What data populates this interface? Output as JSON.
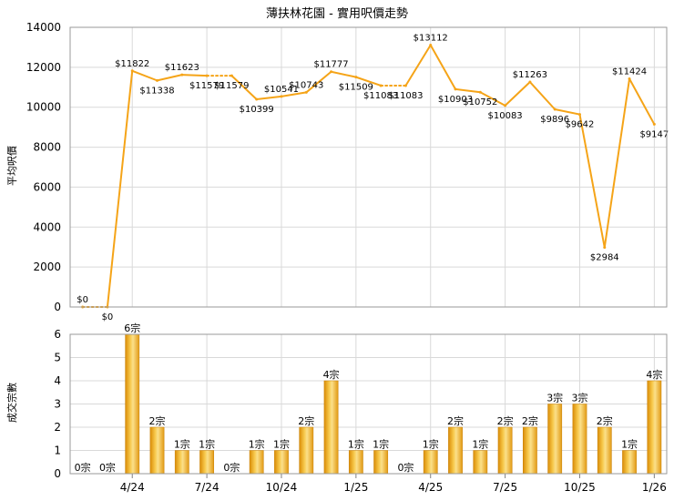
{
  "title": "薄扶林花園 - 實用呎價走勢",
  "colors": {
    "line": "#f5a418",
    "bar": "#f0a81c",
    "grid": "#d9d9d9",
    "axis": "#808080",
    "plot_border": "#9a9a9a"
  },
  "chart_data": [
    {
      "type": "line",
      "ylabel": "平均呎價",
      "ylim": [
        0,
        14000
      ],
      "yticks": [
        0,
        2000,
        4000,
        6000,
        8000,
        10000,
        12000,
        14000
      ],
      "values": [
        0,
        0,
        11822,
        11338,
        11623,
        11579,
        11579,
        10399,
        10541,
        10743,
        11777,
        11509,
        11083,
        11083,
        13112,
        10903,
        10752,
        10083,
        11263,
        9896,
        9642,
        2984,
        11424,
        9147
      ],
      "labels": [
        "$0",
        "$0",
        "$11822",
        "$11338",
        "$11623",
        "$11579",
        "$11579",
        "$10399",
        "$10541",
        "$10743",
        "$11777",
        "$11509",
        "$11083",
        "$11083",
        "$13112",
        "$10903",
        "$10752",
        "$10083",
        "$11263",
        "$9896",
        "$9642",
        "$2984",
        "$11424",
        "$9147"
      ],
      "grid": true
    },
    {
      "type": "bar",
      "ylabel": "成交宗數",
      "ylim": [
        0,
        6
      ],
      "yticks": [
        0,
        1,
        2,
        3,
        4,
        5,
        6
      ],
      "values": [
        0,
        0,
        6,
        2,
        1,
        1,
        0,
        1,
        1,
        2,
        4,
        1,
        1,
        0,
        1,
        2,
        1,
        2,
        2,
        3,
        3,
        2,
        1,
        4
      ],
      "labels": [
        "0宗",
        "0宗",
        "6宗",
        "2宗",
        "1宗",
        "1宗",
        "0宗",
        "1宗",
        "1宗",
        "2宗",
        "4宗",
        "1宗",
        "1宗",
        "0宗",
        "1宗",
        "2宗",
        "1宗",
        "2宗",
        "2宗",
        "3宗",
        "3宗",
        "2宗",
        "1宗",
        "4宗"
      ],
      "x_tick_labels": [
        {
          "index": 2,
          "label": "4/24"
        },
        {
          "index": 5,
          "label": "7/24"
        },
        {
          "index": 8,
          "label": "10/24"
        },
        {
          "index": 11,
          "label": "1/25"
        },
        {
          "index": 14,
          "label": "4/25"
        },
        {
          "index": 17,
          "label": "7/25"
        },
        {
          "index": 20,
          "label": "10/25"
        },
        {
          "index": 23,
          "label": "1/26"
        }
      ],
      "grid": true
    }
  ]
}
